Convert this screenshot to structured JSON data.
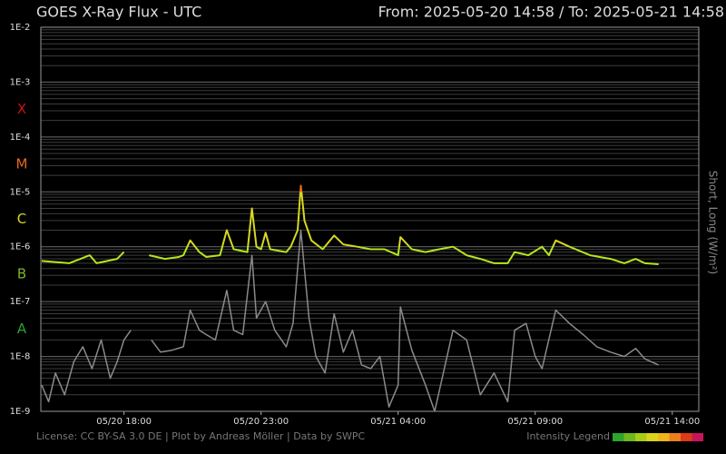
{
  "chart_data": {
    "type": "line",
    "title": "GOES X-Ray Flux - UTC",
    "subtitle": "From: 2025-05-20 14:58  /  To: 2025-05-21 14:58",
    "y_label": "Short, Long (W/m²)",
    "log_y": true,
    "grid": true,
    "ylim": [
      1e-09,
      0.01
    ],
    "yticks": [
      {
        "value": 1e-09,
        "label": "1E-9"
      },
      {
        "value": 1e-08,
        "label": "1E-8"
      },
      {
        "value": 1e-07,
        "label": "1E-7"
      },
      {
        "value": 1e-06,
        "label": "1E-6"
      },
      {
        "value": 1e-05,
        "label": "1E-5"
      },
      {
        "value": 0.0001,
        "label": "1E-4"
      },
      {
        "value": 0.001,
        "label": "1E-3"
      },
      {
        "value": 0.01,
        "label": "1E-2"
      }
    ],
    "xlim": [
      "05/20 14:58",
      "05/21 14:58"
    ],
    "xticks": [
      "05/20 18:00",
      "05/20 23:00",
      "05/21 04:00",
      "05/21 09:00",
      "05/21 14:00"
    ],
    "flare_classes": [
      {
        "label": "A",
        "color": "#2ea32e"
      },
      {
        "label": "B",
        "color": "#7fb522"
      },
      {
        "label": "C",
        "color": "#d8d820"
      },
      {
        "label": "M",
        "color": "#e8681c"
      },
      {
        "label": "X",
        "color": "#c81414"
      }
    ],
    "series": [
      {
        "name": "Short",
        "color": "#8a8a8a",
        "x": [
          "05/20 15:00",
          "05/20 15:15",
          "05/20 15:30",
          "05/20 15:50",
          "05/20 16:10",
          "05/20 16:30",
          "05/20 16:50",
          "05/20 17:10",
          "05/20 17:30",
          "05/20 17:45",
          "05/20 18:00",
          "05/20 18:15",
          "05/20 18:30",
          "05/20 19:00",
          "05/20 19:20",
          "05/20 19:45",
          "05/20 20:10",
          "05/20 20:25",
          "05/20 20:45",
          "05/20 21:00",
          "05/20 21:20",
          "05/20 21:45",
          "05/20 22:00",
          "05/20 22:20",
          "05/20 22:40",
          "05/20 22:50",
          "05/20 23:10",
          "05/20 23:30",
          "05/20 23:55",
          "05/21 00:10",
          "05/21 00:27",
          "05/21 00:45",
          "05/21 01:00",
          "05/21 01:20",
          "05/21 01:40",
          "05/21 02:00",
          "05/21 02:20",
          "05/21 02:40",
          "05/21 03:00",
          "05/21 03:20",
          "05/21 03:40",
          "05/21 04:00",
          "05/21 04:05",
          "05/21 04:30",
          "05/21 05:00",
          "05/21 05:20",
          "05/21 06:00",
          "05/21 06:30",
          "05/21 07:00",
          "05/21 07:30",
          "05/21 08:00",
          "05/21 08:15",
          "05/21 08:40",
          "05/21 09:00",
          "05/21 09:15",
          "05/21 09:45",
          "05/21 10:15",
          "05/21 10:45",
          "05/21 11:15",
          "05/21 11:45",
          "05/21 12:15",
          "05/21 12:40",
          "05/21 13:00",
          "05/21 13:30"
        ],
        "values": [
          3e-09,
          1.5e-09,
          5e-09,
          2e-09,
          8e-09,
          1.5e-08,
          6e-09,
          2e-08,
          4e-09,
          8e-09,
          2e-08,
          3e-08,
          null,
          2e-08,
          1.2e-08,
          1.3e-08,
          1.5e-08,
          7e-08,
          3e-08,
          2.5e-08,
          2e-08,
          1.6e-07,
          3e-08,
          2.5e-08,
          7e-07,
          5e-08,
          1e-07,
          3e-08,
          1.5e-08,
          4e-08,
          2e-06,
          5e-08,
          1e-08,
          5e-09,
          6e-08,
          1.2e-08,
          3e-08,
          7e-09,
          6e-09,
          1e-08,
          1.2e-09,
          3e-09,
          8e-08,
          1.3e-08,
          3e-09,
          1e-09,
          3e-08,
          2e-08,
          2e-09,
          5e-09,
          1.5e-09,
          3e-08,
          4e-08,
          1e-08,
          6e-09,
          7e-08,
          4e-08,
          2.5e-08,
          1.5e-08,
          1.2e-08,
          1e-08,
          1.4e-08,
          9e-09,
          7e-09
        ]
      },
      {
        "name": "Long",
        "color": "#b5e61d",
        "x": [
          "05/20 15:00",
          "05/20 16:00",
          "05/20 16:45",
          "05/20 17:00",
          "05/20 17:45",
          "05/20 18:00",
          "05/20 18:30",
          "05/20 18:55",
          "05/20 19:30",
          "05/20 20:00",
          "05/20 20:10",
          "05/20 20:25",
          "05/20 20:45",
          "05/20 21:00",
          "05/20 21:30",
          "05/20 21:45",
          "05/20 22:00",
          "05/20 22:30",
          "05/20 22:40",
          "05/20 22:50",
          "05/20 23:00",
          "05/20 23:10",
          "05/20 23:20",
          "05/20 23:55",
          "05/21 00:05",
          "05/21 00:20",
          "05/21 00:27",
          "05/21 00:35",
          "05/21 00:50",
          "05/21 01:15",
          "05/21 01:40",
          "05/21 02:00",
          "05/21 02:30",
          "05/21 03:00",
          "05/21 03:30",
          "05/21 04:00",
          "05/21 04:05",
          "05/21 04:30",
          "05/21 05:00",
          "05/21 05:30",
          "05/21 06:00",
          "05/21 06:30",
          "05/21 07:00",
          "05/21 07:30",
          "05/21 08:00",
          "05/21 08:15",
          "05/21 08:45",
          "05/21 09:15",
          "05/21 09:30",
          "05/21 09:45",
          "05/21 10:15",
          "05/21 11:00",
          "05/21 11:45",
          "05/21 12:15",
          "05/21 12:40",
          "05/21 13:00",
          "05/21 13:30"
        ],
        "values": [
          5.5e-07,
          5e-07,
          7e-07,
          5e-07,
          6e-07,
          8e-07,
          null,
          7e-07,
          6e-07,
          6.5e-07,
          7e-07,
          1.3e-06,
          8e-07,
          6.5e-07,
          7e-07,
          2e-06,
          9e-07,
          8e-07,
          5e-06,
          1e-06,
          9e-07,
          1.8e-06,
          9e-07,
          8e-07,
          1e-06,
          2e-06,
          1.3e-05,
          3e-06,
          1.3e-06,
          9e-07,
          1.6e-06,
          1.1e-06,
          1e-06,
          9e-07,
          9e-07,
          7e-07,
          1.5e-06,
          9e-07,
          8e-07,
          9e-07,
          1e-06,
          7e-07,
          6e-07,
          5e-07,
          5e-07,
          8e-07,
          7e-07,
          1e-06,
          7e-07,
          1.3e-06,
          1e-06,
          7e-07,
          6e-07,
          5e-07,
          6e-07,
          5e-07,
          4.8e-07
        ]
      }
    ],
    "footer": "License: CC BY-SA 3.0 DE | Plot by Andreas Möller | Data by SWPC",
    "intensity_legend": {
      "label": "Intensity Legend",
      "colors": [
        "#2ea32e",
        "#6cb81e",
        "#a8cc14",
        "#dcd41a",
        "#eeb41a",
        "#ee7f1c",
        "#dc3a18",
        "#c8145a"
      ]
    }
  }
}
